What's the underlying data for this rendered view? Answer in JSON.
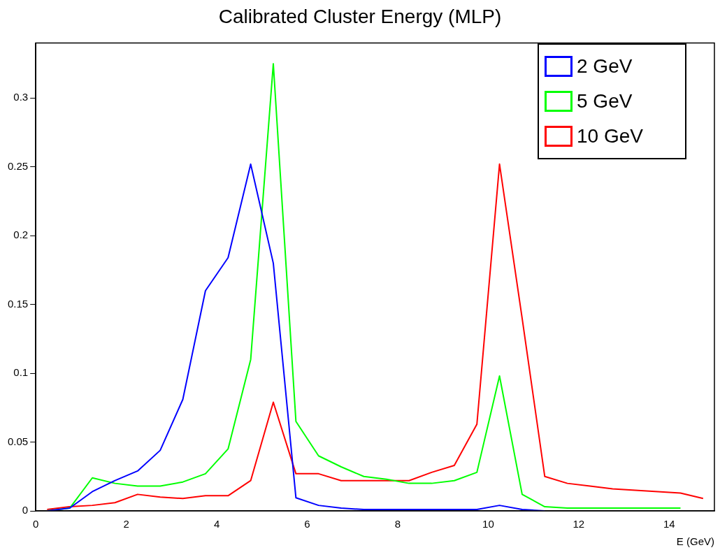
{
  "chart_data": {
    "type": "line",
    "title": "Calibrated Cluster Energy (MLP)",
    "xlabel": "E (GeV)",
    "x": [
      0.25,
      0.75,
      1.25,
      1.75,
      2.25,
      2.75,
      3.25,
      3.75,
      4.25,
      4.75,
      5.25,
      5.75,
      6.25,
      6.75,
      7.25,
      7.75,
      8.25,
      8.75,
      9.25,
      9.75,
      10.25,
      10.75,
      11.25,
      11.75,
      12.25,
      12.75,
      13.25,
      13.75,
      14.25,
      14.75
    ],
    "series": [
      {
        "name": "2 GeV",
        "color": "#0000ff",
        "values": [
          0,
          0.002,
          0.014,
          0.022,
          0.029,
          0.044,
          0.081,
          0.16,
          0.184,
          0.252,
          0.18,
          0.0095,
          0.004,
          0.002,
          0.001,
          0.001,
          0.001,
          0.001,
          0.001,
          0.001,
          0.004,
          0.001,
          0,
          null,
          null,
          null,
          null,
          null,
          null,
          null
        ]
      },
      {
        "name": "5 GeV",
        "color": "#00ff00",
        "values": [
          0,
          0.002,
          0.024,
          0.02,
          0.018,
          0.018,
          0.021,
          0.027,
          0.045,
          0.11,
          0.325,
          0.065,
          0.04,
          0.032,
          0.025,
          0.023,
          0.02,
          0.02,
          0.022,
          0.028,
          0.098,
          0.012,
          0.003,
          0.002,
          0.002,
          0.002,
          0.002,
          0.002,
          0.002,
          null
        ]
      },
      {
        "name": "10 GeV",
        "color": "#ff0000",
        "values": [
          0.001,
          0.003,
          0.004,
          0.006,
          0.012,
          0.01,
          0.009,
          0.011,
          0.011,
          0.022,
          0.079,
          0.027,
          0.027,
          0.022,
          0.022,
          0.022,
          0.022,
          0.028,
          0.033,
          0.063,
          0.252,
          0.14,
          0.025,
          0.02,
          0.018,
          0.016,
          0.015,
          0.014,
          0.013,
          0.009
        ]
      }
    ],
    "xlim": [
      0,
      15
    ],
    "xticks": [
      0,
      2,
      4,
      6,
      8,
      10,
      12,
      14
    ],
    "ylim": [
      0,
      0.34
    ],
    "yticks": [
      0,
      0.05,
      0.1,
      0.15,
      0.2,
      0.25,
      0.3
    ],
    "grid": false,
    "legend": "top right",
    "marker": "none",
    "line_style": "solid"
  }
}
